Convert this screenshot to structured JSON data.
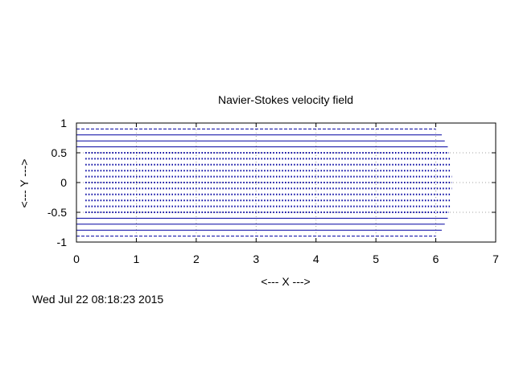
{
  "chart_data": {
    "type": "line",
    "title": "Navier-Stokes velocity field",
    "xlabel": "<--- X --->",
    "ylabel": "<--- Y --->",
    "xlim": [
      0,
      7
    ],
    "ylim": [
      -1,
      1
    ],
    "xticks": [
      "0",
      "1",
      "2",
      "3",
      "4",
      "5",
      "6",
      "7"
    ],
    "yticks": [
      "1",
      "0.5",
      "0",
      "-0.5",
      "-1"
    ],
    "grid": true,
    "arrow_color": "#0000a0",
    "grid_color": "#a0a0a0",
    "vectors": {
      "description_free": true,
      "y": [
        -0.9,
        -0.8,
        -0.7,
        -0.6,
        -0.5,
        -0.4,
        -0.3,
        -0.2,
        -0.1,
        0.0,
        0.1,
        0.2,
        0.3,
        0.4,
        0.5,
        0.6,
        0.7,
        0.8,
        0.9
      ],
      "x_start": [
        0.0,
        0.0,
        0.0,
        0.0,
        0.15,
        0.15,
        0.15,
        0.15,
        0.15,
        0.15,
        0.15,
        0.15,
        0.15,
        0.15,
        0.15,
        0.0,
        0.0,
        0.0,
        0.0
      ],
      "x_end": [
        6.0,
        6.1,
        6.15,
        6.2,
        6.22,
        6.24,
        6.25,
        6.26,
        6.27,
        6.27,
        6.27,
        6.26,
        6.25,
        6.24,
        6.22,
        6.2,
        6.15,
        6.1,
        6.0
      ],
      "style": [
        "dashed",
        "solid",
        "solid",
        "solid",
        "dotted",
        "dotted",
        "dotted",
        "dotted",
        "dotted",
        "dotted",
        "dotted",
        "dotted",
        "dotted",
        "dotted",
        "dotted",
        "solid",
        "solid",
        "solid",
        "dashed"
      ]
    }
  },
  "timestamp": "Wed Jul 22 08:18:23 2015"
}
